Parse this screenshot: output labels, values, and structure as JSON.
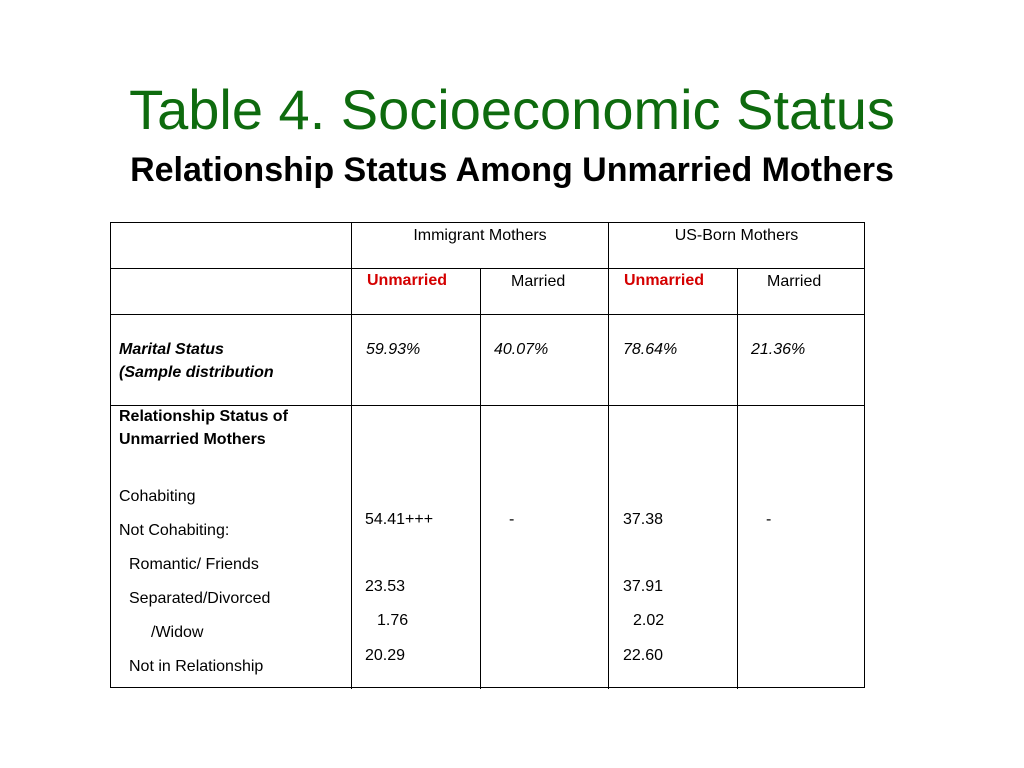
{
  "title": "Table 4. Socioeconomic Status",
  "subtitle": "Relationship Status Among Unmarried Mothers",
  "colors": {
    "title": "#0e6b0e",
    "unmarried_header": "#d40000"
  },
  "table": {
    "group_headers": [
      "Immigrant Mothers",
      "US-Born Mothers"
    ],
    "sub_headers": [
      "Unmarried",
      "Married",
      "Unmarried",
      "Married"
    ],
    "marital_status": {
      "label_line1": "Marital Status",
      "label_line2": "(Sample distribution",
      "values": [
        "59.93%",
        "40.07%",
        "78.64%",
        "21.36%"
      ]
    },
    "relationship_section": {
      "heading_line1": "Relationship Status of",
      "heading_line2": "Unmarried Mothers",
      "cohabiting": "Cohabiting",
      "not_cohabiting": "Not Cohabiting:",
      "romantic": "Romantic/ Friends",
      "separated": "Separated/Divorced",
      "widow": "/Widow",
      "not_in_relationship": "Not in Relationship"
    },
    "values": {
      "immigrant_unmarried": [
        "54.41+++",
        "23.53",
        "1.76",
        "20.29"
      ],
      "immigrant_married": "-",
      "usborn_unmarried": [
        "37.38",
        "37.91",
        "2.02",
        "22.60"
      ],
      "usborn_married": "-"
    }
  }
}
